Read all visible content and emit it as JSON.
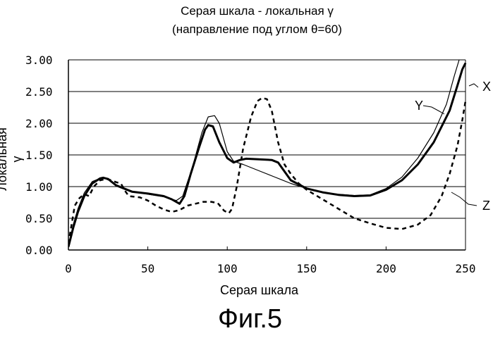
{
  "chart_data": {
    "type": "line",
    "title_line1": "Серая шкала - локальная γ",
    "title_line2": "(направление под углом θ=60)",
    "xlabel": "Серая шкала",
    "ylabel": "Локальная γ",
    "figure_label": "Фиг.5",
    "xlim": [
      0,
      250
    ],
    "ylim": [
      0,
      3
    ],
    "x_ticks": [
      "0",
      "50",
      "100",
      "150",
      "200",
      "250"
    ],
    "y_ticks": [
      "0.00",
      "0.50",
      "1.00",
      "1.50",
      "2.00",
      "2.50",
      "3.00"
    ],
    "grid": "horizontal",
    "series": [
      {
        "name": "X",
        "style": "solid-thick",
        "points": [
          [
            0,
            0.05
          ],
          [
            3,
            0.35
          ],
          [
            6,
            0.6
          ],
          [
            10,
            0.85
          ],
          [
            15,
            1.05
          ],
          [
            20,
            1.13
          ],
          [
            22,
            1.14
          ],
          [
            25,
            1.12
          ],
          [
            30,
            1.02
          ],
          [
            35,
            0.97
          ],
          [
            40,
            0.92
          ],
          [
            50,
            0.89
          ],
          [
            60,
            0.85
          ],
          [
            65,
            0.8
          ],
          [
            70,
            0.73
          ],
          [
            73,
            0.85
          ],
          [
            77,
            1.2
          ],
          [
            82,
            1.6
          ],
          [
            86,
            1.9
          ],
          [
            88,
            1.97
          ],
          [
            91,
            1.95
          ],
          [
            95,
            1.7
          ],
          [
            100,
            1.45
          ],
          [
            104,
            1.38
          ],
          [
            108,
            1.42
          ],
          [
            112,
            1.44
          ],
          [
            120,
            1.43
          ],
          [
            128,
            1.42
          ],
          [
            132,
            1.38
          ],
          [
            140,
            1.1
          ],
          [
            150,
            0.97
          ],
          [
            160,
            0.91
          ],
          [
            170,
            0.87
          ],
          [
            180,
            0.85
          ],
          [
            190,
            0.86
          ],
          [
            200,
            0.95
          ],
          [
            210,
            1.1
          ],
          [
            220,
            1.35
          ],
          [
            230,
            1.7
          ],
          [
            240,
            2.2
          ],
          [
            245,
            2.6
          ],
          [
            248,
            2.85
          ],
          [
            250,
            2.95
          ]
        ]
      },
      {
        "name": "Y",
        "style": "solid-thin",
        "points": [
          [
            0,
            0.05
          ],
          [
            3,
            0.4
          ],
          [
            6,
            0.65
          ],
          [
            10,
            0.9
          ],
          [
            15,
            1.08
          ],
          [
            20,
            1.13
          ],
          [
            25,
            1.12
          ],
          [
            30,
            1.02
          ],
          [
            40,
            0.93
          ],
          [
            50,
            0.88
          ],
          [
            60,
            0.84
          ],
          [
            68,
            0.78
          ],
          [
            72,
            0.85
          ],
          [
            78,
            1.3
          ],
          [
            84,
            1.85
          ],
          [
            88,
            2.1
          ],
          [
            92,
            2.12
          ],
          [
            95,
            2.0
          ],
          [
            100,
            1.55
          ],
          [
            104,
            1.4
          ],
          [
            110,
            1.35
          ],
          [
            120,
            1.25
          ],
          [
            130,
            1.15
          ],
          [
            140,
            1.05
          ],
          [
            150,
            0.97
          ],
          [
            160,
            0.91
          ],
          [
            170,
            0.88
          ],
          [
            180,
            0.86
          ],
          [
            190,
            0.87
          ],
          [
            200,
            0.97
          ],
          [
            210,
            1.15
          ],
          [
            220,
            1.45
          ],
          [
            230,
            1.85
          ],
          [
            238,
            2.3
          ],
          [
            243,
            2.75
          ],
          [
            246,
            3.0
          ]
        ]
      },
      {
        "name": "Z",
        "style": "dashed",
        "points": [
          [
            0,
            0.1
          ],
          [
            2,
            0.4
          ],
          [
            4,
            0.7
          ],
          [
            7,
            0.82
          ],
          [
            10,
            0.88
          ],
          [
            13,
            0.85
          ],
          [
            16,
            1.0
          ],
          [
            20,
            1.1
          ],
          [
            24,
            1.12
          ],
          [
            27,
            1.1
          ],
          [
            30,
            1.07
          ],
          [
            33,
            1.05
          ],
          [
            36,
            0.92
          ],
          [
            38,
            0.85
          ],
          [
            45,
            0.83
          ],
          [
            50,
            0.78
          ],
          [
            55,
            0.7
          ],
          [
            60,
            0.64
          ],
          [
            65,
            0.6
          ],
          [
            70,
            0.63
          ],
          [
            75,
            0.7
          ],
          [
            80,
            0.73
          ],
          [
            85,
            0.76
          ],
          [
            90,
            0.76
          ],
          [
            94,
            0.74
          ],
          [
            98,
            0.62
          ],
          [
            101,
            0.58
          ],
          [
            103,
            0.65
          ],
          [
            106,
            1.0
          ],
          [
            110,
            1.6
          ],
          [
            115,
            2.1
          ],
          [
            119,
            2.35
          ],
          [
            122,
            2.4
          ],
          [
            125,
            2.38
          ],
          [
            128,
            2.2
          ],
          [
            132,
            1.7
          ],
          [
            136,
            1.35
          ],
          [
            140,
            1.2
          ],
          [
            145,
            1.05
          ],
          [
            150,
            0.95
          ],
          [
            160,
            0.8
          ],
          [
            170,
            0.65
          ],
          [
            180,
            0.5
          ],
          [
            190,
            0.42
          ],
          [
            200,
            0.35
          ],
          [
            210,
            0.33
          ],
          [
            220,
            0.4
          ],
          [
            228,
            0.55
          ],
          [
            235,
            0.85
          ],
          [
            240,
            1.2
          ],
          [
            245,
            1.65
          ],
          [
            248,
            2.05
          ],
          [
            250,
            2.35
          ]
        ]
      }
    ],
    "curve_labels": [
      {
        "text": "X"
      },
      {
        "text": "Y"
      },
      {
        "text": "Z"
      }
    ]
  }
}
